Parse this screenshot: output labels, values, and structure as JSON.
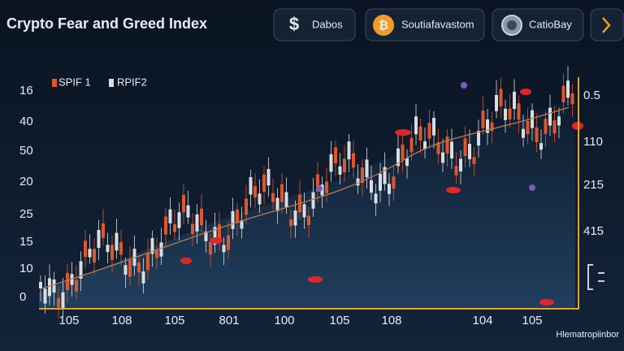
{
  "header": {
    "title": "Crypto Fear and Greed Index",
    "buttons": [
      "Dabos",
      "Soutiafavastom",
      "CatioBay"
    ]
  },
  "legend": [
    "SPIF 1",
    "RPIF2"
  ],
  "left_axis_labels": [
    "16",
    "40",
    "50",
    "20",
    "25",
    "15",
    "10",
    "0"
  ],
  "right_axis_labels": [
    "0.5",
    "110",
    "215",
    "415"
  ],
  "x_axis_labels": [
    "105",
    "108",
    "105",
    "801",
    "100",
    "105",
    "108",
    "104",
    "105"
  ],
  "watermark": "Hlematropiinbor"
}
